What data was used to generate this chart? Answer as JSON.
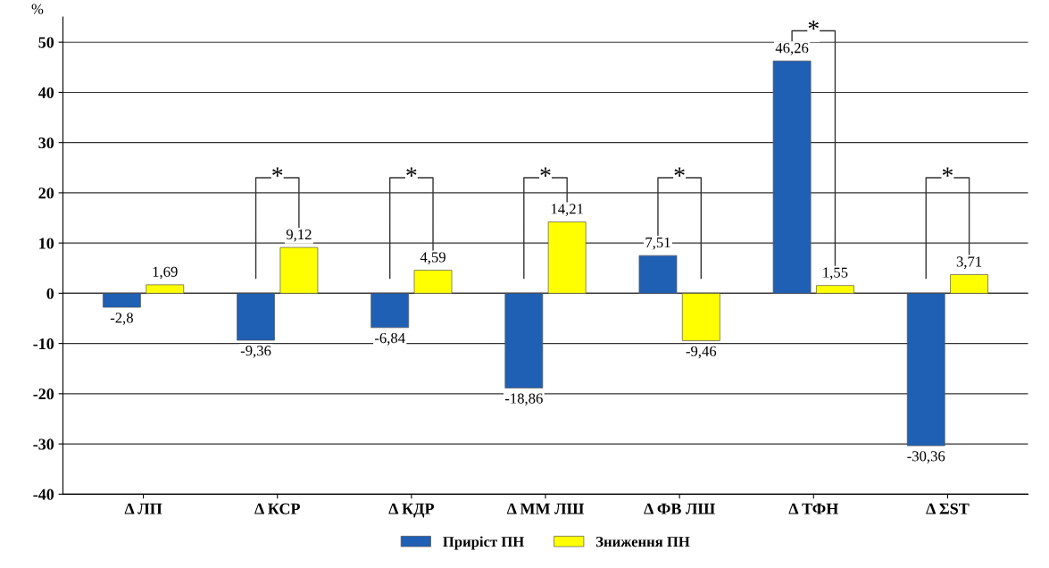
{
  "chart_data": {
    "type": "bar",
    "ylabel": "%",
    "categories": [
      "Δ ЛП",
      "Δ КСР",
      "Δ КДР",
      "Δ ММ ЛШ",
      "Δ ФВ ЛШ",
      "Δ ТФН",
      "Δ ΣST"
    ],
    "series": [
      {
        "name": "Приріст ПН",
        "color": "#1f5fb4",
        "values": [
          -2.8,
          -9.36,
          -6.84,
          -18.86,
          7.51,
          46.26,
          -30.36
        ],
        "value_labels": [
          "-2,8",
          "-9,36",
          "-6,84",
          "-18,86",
          "7,51",
          "46,26",
          "-30,36"
        ]
      },
      {
        "name": "Зниження ПН",
        "color": "#ffff00",
        "values": [
          1.69,
          9.12,
          4.59,
          14.21,
          -9.46,
          1.55,
          3.71
        ],
        "value_labels": [
          "1,69",
          "9,12",
          "4,59",
          "14,21",
          "-9,46",
          "1,55",
          "3,71"
        ]
      }
    ],
    "ylim": [
      -40,
      55
    ],
    "yticks": [
      -40,
      -30,
      -20,
      -10,
      0,
      10,
      20,
      30,
      40,
      50
    ],
    "grid": "y",
    "legend": "bottom",
    "annotations": [
      "*",
      "*",
      "*",
      "*",
      "*",
      "*"
    ]
  }
}
